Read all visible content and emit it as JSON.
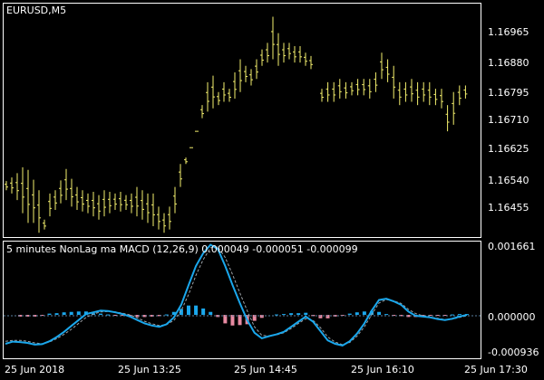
{
  "window": {
    "symbol_label": "EURUSD,M5",
    "indicator_label": "5 minutes NonLag ma MACD (12,26,9) 0.000049 -0.000051 -0.000099"
  },
  "colors": {
    "background": "#000000",
    "frame": "#ffffff",
    "bar": "#f5f06e",
    "macd_line": "#1aa7ec",
    "signal_line": "#9aa0a6",
    "hist_positive": "#1aa7ec",
    "hist_negative": "#e88aa2",
    "zero_line": "#5a7fa0"
  },
  "time_axis": [
    "25 Jun 2018",
    "25 Jun 13:25",
    "25 Jun 14:45",
    "25 Jun 16:10",
    "25 Jun 17:30"
  ],
  "price_axis": [
    "1.16965",
    "1.16880",
    "1.16795",
    "1.16710",
    "1.16625",
    "1.16540",
    "1.16455"
  ],
  "indicator_axis": [
    "0.001661",
    "0.000000",
    "-0.000936"
  ],
  "chart_data": [
    {
      "type": "ohlc",
      "title": "EURUSD,M5",
      "ylim": [
        1.16388,
        1.17079
      ],
      "series": [
        {
          "name": "EURUSD",
          "high": [
            1.16548,
            1.16559,
            1.16572,
            1.1659,
            1.16582,
            1.16552,
            1.1652,
            1.1643,
            1.1651,
            1.1652,
            1.1655,
            1.16585,
            1.16555,
            1.1653,
            1.1652,
            1.1651,
            1.16515,
            1.16505,
            1.1652,
            1.16515,
            1.1651,
            1.16515,
            1.16505,
            1.1651,
            1.1653,
            1.1652,
            1.1651,
            1.1651,
            1.1647,
            1.1645,
            1.1647,
            1.1653,
            1.166,
            1.1662,
            1.1665,
            1.167,
            1.1678,
            1.1685,
            1.1687,
            1.1682,
            1.1685,
            1.1683,
            1.1688,
            1.1692,
            1.169,
            1.1689,
            1.1692,
            1.1695,
            1.1697,
            1.1705,
            1.17,
            1.1697,
            1.1697,
            1.1696,
            1.1696,
            1.1694,
            1.1693
          ],
          "low": [
            1.1652,
            1.1651,
            1.1649,
            1.1645,
            1.1642,
            1.1642,
            1.1639,
            1.164,
            1.1644,
            1.1646,
            1.1648,
            1.1649,
            1.1647,
            1.1646,
            1.16455,
            1.1645,
            1.1644,
            1.1643,
            1.1644,
            1.1645,
            1.1646,
            1.16455,
            1.1646,
            1.1645,
            1.1644,
            1.1643,
            1.1642,
            1.1641,
            1.164,
            1.1639,
            1.164,
            1.1645,
            1.1653,
            1.166,
            1.1665,
            1.167,
            1.1674,
            1.1676,
            1.1677,
            1.1678,
            1.1679,
            1.1679,
            1.168,
            1.1682,
            1.1685,
            1.1684,
            1.1686,
            1.169,
            1.1691,
            1.1692,
            1.169,
            1.1691,
            1.1692,
            1.1691,
            1.1691,
            1.169,
            1.1689
          ]
        },
        {
          "name": "EURUSD-2",
          "high": [
            1.1683,
            1.1685,
            1.1685,
            1.1686,
            1.1685,
            1.1685,
            1.1686,
            1.1686,
            1.1686,
            1.1688,
            1.1694,
            1.1692,
            1.169,
            1.1685,
            1.1685,
            1.1686,
            1.1685,
            1.1685,
            1.1685,
            1.1683,
            1.1683,
            1.1678,
            1.1682,
            1.1684,
            1.1684
          ],
          "low": [
            1.1679,
            1.1679,
            1.1679,
            1.168,
            1.168,
            1.1681,
            1.1681,
            1.1681,
            1.168,
            1.1682,
            1.1686,
            1.1685,
            1.168,
            1.1678,
            1.1679,
            1.1679,
            1.1678,
            1.1679,
            1.1678,
            1.1678,
            1.1677,
            1.167,
            1.1672,
            1.1678,
            1.168
          ]
        }
      ]
    },
    {
      "type": "line",
      "title": "5 minutes NonLag ma MACD (12,26,9)",
      "ylim": [
        -0.000936,
        0.001661
      ],
      "series": [
        {
          "name": "MACD",
          "values": [
            -0.00068,
            -0.00063,
            -0.00064,
            -0.00066,
            -0.0007,
            -0.00069,
            -0.00062,
            -0.00052,
            -0.0004,
            -0.00026,
            -0.00012,
            2e-05,
            6e-05,
            0.0001,
            9e-05,
            6e-05,
            2e-05,
            -4e-05,
            -0.00012,
            -0.0002,
            -0.00025,
            -0.00028,
            -0.00022,
            -6e-05,
            0.00024,
            0.0007,
            0.00115,
            0.00145,
            0.00165,
            0.00155,
            0.00115,
            0.0007,
            0.00028,
            -0.00012,
            -0.00042,
            -0.00055,
            -0.0005,
            -0.00046,
            -0.0004,
            -0.00028,
            -0.00016,
            -4e-05,
            -0.00016,
            -0.00038,
            -0.0006,
            -0.00068,
            -0.00072,
            -0.00062,
            -0.00044,
            -0.0002,
            0.0001,
            0.00035,
            0.00038,
            0.00032,
            0.00024,
            8e-05,
            -2e-05,
            -4e-05,
            -6e-05,
            -0.0001,
            -0.00012,
            -9e-05,
            -4e-05,
            0.0
          ]
        },
        {
          "name": "Signal",
          "values": [
            -0.00062,
            -0.0006,
            -0.0006,
            -0.00062,
            -0.00066,
            -0.00068,
            -0.00064,
            -0.00056,
            -0.00046,
            -0.00034,
            -0.0002,
            -6e-05,
            2e-05,
            7e-05,
            8e-05,
            7e-05,
            4e-05,
            0.0,
            -7e-05,
            -0.00015,
            -0.00021,
            -0.00025,
            -0.00023,
            -0.00013,
            0.0001,
            0.00048,
            0.00093,
            0.0013,
            0.00158,
            0.0016,
            0.00135,
            0.00095,
            0.00052,
            0.0001,
            -0.00028,
            -0.00048,
            -0.0005,
            -0.00047,
            -0.00042,
            -0.00032,
            -0.0002,
            -9e-05,
            -0.00013,
            -0.0003,
            -0.00052,
            -0.00064,
            -0.0007,
            -0.00065,
            -0.0005,
            -0.00028,
            1e-05,
            0.00028,
            0.00036,
            0.00033,
            0.00027,
            0.00013,
            3e-05,
            -2e-05,
            -5e-05,
            -8e-05,
            -0.00011,
            -0.0001,
            -6e-05,
            -2e-05
          ]
        },
        {
          "name": "Histogram",
          "values": [
            0,
            0,
            -4e-05,
            -4e-05,
            -4e-05,
            -2e-05,
            3e-05,
            4e-05,
            6e-05,
            7e-05,
            8e-05,
            8e-05,
            4e-05,
            3e-05,
            1e-05,
            -1e-05,
            -2e-05,
            -4e-05,
            -5e-05,
            -5e-05,
            -4e-05,
            -3e-05,
            1e-05,
            7e-05,
            0.00014,
            0.00022,
            0.00022,
            0.00015,
            7e-05,
            -5e-05,
            -0.0002,
            -0.00025,
            -0.00024,
            -0.00022,
            -0.00014,
            -7e-05,
            0,
            1e-05,
            2e-05,
            4e-05,
            4e-05,
            5e-05,
            -3e-05,
            -8e-05,
            -8e-05,
            -4e-05,
            -2e-05,
            3e-05,
            6e-05,
            8e-05,
            9e-05,
            7e-05,
            2e-05,
            -1e-05,
            -3e-05,
            -5e-05,
            -5e-05,
            -2e-05,
            -1e-05,
            -2e-05,
            -1e-05,
            1e-05,
            2e-05,
            2e-05
          ]
        }
      ]
    }
  ]
}
